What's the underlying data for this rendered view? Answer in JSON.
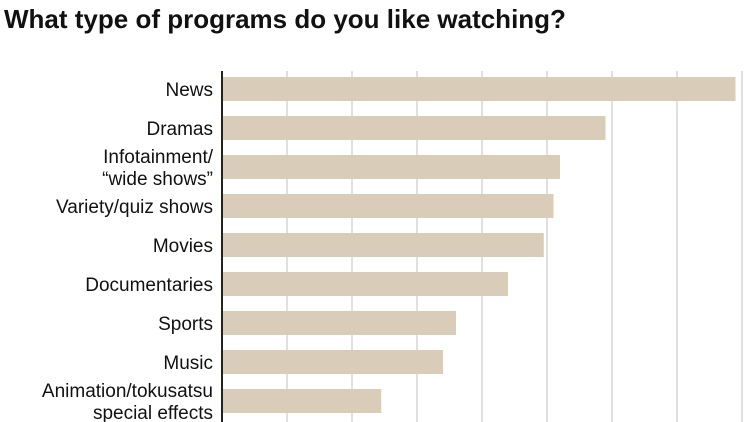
{
  "title": "What type of programs do you like watching?",
  "chart_data": {
    "type": "bar",
    "orientation": "horizontal",
    "title": "What type of programs do you like watching?",
    "categories": [
      "News",
      "Dramas",
      "Infotainment/\n“wide shows”",
      "Variety/quiz shows",
      "Movies",
      "Documentaries",
      "Sports",
      "Music",
      "Animation/tokusatsu\nspecial effects"
    ],
    "values": [
      79,
      59,
      52,
      51,
      49.5,
      44,
      36,
      34,
      24.5
    ],
    "xlim": [
      0,
      80
    ],
    "grid": true,
    "bar_color": "#d9ccb8",
    "grid_color": "#d6d6d6",
    "axis_color": "#222222"
  }
}
